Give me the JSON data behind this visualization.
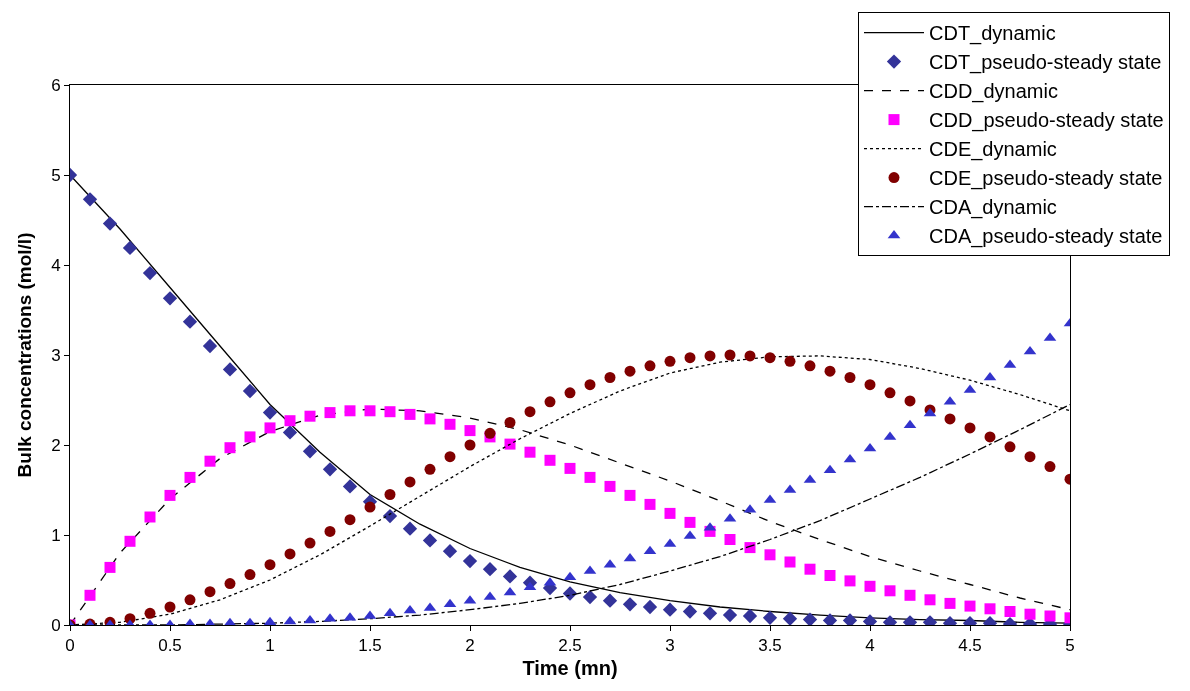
{
  "chart_data": {
    "type": "line",
    "xlabel": "Time (mn)",
    "ylabel": "Bulk concentrations (mol/l)",
    "xlim": [
      0,
      5
    ],
    "xticks": [
      0,
      0.5,
      1,
      1.5,
      2,
      2.5,
      3,
      3.5,
      4,
      4.5,
      5
    ],
    "ylim": [
      0,
      6
    ],
    "yticks": [
      0,
      1,
      2,
      3,
      4,
      5,
      6
    ],
    "grid": false,
    "legend": "top right",
    "series": [
      {
        "name": "CDT_dynamic",
        "type": "line",
        "line_style": "solid",
        "marker": "none",
        "color": "#000000",
        "x": [
          0,
          0.25,
          0.5,
          0.75,
          1,
          1.25,
          1.5,
          1.75,
          2,
          2.25,
          2.5,
          2.75,
          3,
          3.25,
          3.5,
          3.75,
          4,
          4.25,
          4.5,
          4.75,
          5
        ],
        "values": [
          5,
          4.4,
          3.75,
          3.1,
          2.45,
          1.92,
          1.45,
          1.12,
          0.85,
          0.64,
          0.48,
          0.36,
          0.27,
          0.2,
          0.15,
          0.11,
          0.08,
          0.06,
          0.05,
          0.03,
          0.02
        ]
      },
      {
        "name": "CDT_pseudo-steady state",
        "type": "scatter",
        "marker": "diamond",
        "color": "#333399",
        "x": [
          0,
          0.1,
          0.2,
          0.3,
          0.4,
          0.5,
          0.6,
          0.7,
          0.8,
          0.9,
          1,
          1.1,
          1.2,
          1.3,
          1.4,
          1.5,
          1.6,
          1.7,
          1.8,
          1.9,
          2,
          2.1,
          2.2,
          2.3,
          2.4,
          2.5,
          2.6,
          2.7,
          2.8,
          2.9,
          3,
          3.1,
          3.2,
          3.3,
          3.4,
          3.5,
          3.6,
          3.7,
          3.8,
          3.9,
          4,
          4.1,
          4.2,
          4.3,
          4.4,
          4.5,
          4.6,
          4.7,
          4.8,
          4.9,
          5
        ],
        "values": [
          5,
          4.73,
          4.46,
          4.19,
          3.91,
          3.63,
          3.37,
          3.1,
          2.84,
          2.6,
          2.36,
          2.14,
          1.93,
          1.73,
          1.54,
          1.37,
          1.21,
          1.07,
          0.94,
          0.82,
          0.71,
          0.62,
          0.54,
          0.47,
          0.41,
          0.35,
          0.31,
          0.27,
          0.23,
          0.2,
          0.17,
          0.15,
          0.13,
          0.11,
          0.1,
          0.08,
          0.07,
          0.06,
          0.05,
          0.05,
          0.04,
          0.03,
          0.03,
          0.03,
          0.02,
          0.02,
          0.02,
          0.01,
          0.01,
          0.01,
          0.01
        ]
      },
      {
        "name": "CDD_dynamic",
        "type": "line",
        "line_style": "dashed",
        "marker": "none",
        "color": "#000000",
        "x": [
          0,
          0.25,
          0.5,
          0.75,
          1,
          1.25,
          1.5,
          1.75,
          2,
          2.25,
          2.5,
          2.75,
          3,
          3.25,
          3.5,
          3.75,
          4,
          4.25,
          4.5,
          4.75,
          5
        ],
        "values": [
          0,
          0.8,
          1.4,
          1.85,
          2.15,
          2.33,
          2.4,
          2.38,
          2.3,
          2.17,
          2,
          1.8,
          1.6,
          1.38,
          1.15,
          0.95,
          0.76,
          0.6,
          0.45,
          0.3,
          0.17
        ]
      },
      {
        "name": "CDD_pseudo-steady state",
        "type": "scatter",
        "marker": "square",
        "color": "#ff00ff",
        "x": [
          0,
          0.1,
          0.2,
          0.3,
          0.4,
          0.5,
          0.6,
          0.7,
          0.8,
          0.9,
          1,
          1.1,
          1.2,
          1.3,
          1.4,
          1.5,
          1.6,
          1.7,
          1.8,
          1.9,
          2,
          2.1,
          2.2,
          2.3,
          2.4,
          2.5,
          2.6,
          2.7,
          2.8,
          2.9,
          3,
          3.1,
          3.2,
          3.3,
          3.4,
          3.5,
          3.6,
          3.7,
          3.8,
          3.9,
          4,
          4.1,
          4.2,
          4.3,
          4.4,
          4.5,
          4.6,
          4.7,
          4.8,
          4.9,
          5
        ],
        "values": [
          0,
          0.33,
          0.64,
          0.93,
          1.2,
          1.44,
          1.64,
          1.82,
          1.97,
          2.09,
          2.19,
          2.27,
          2.32,
          2.36,
          2.38,
          2.38,
          2.37,
          2.34,
          2.29,
          2.23,
          2.16,
          2.09,
          2.01,
          1.92,
          1.83,
          1.74,
          1.64,
          1.54,
          1.44,
          1.34,
          1.24,
          1.14,
          1.04,
          0.95,
          0.86,
          0.78,
          0.7,
          0.62,
          0.55,
          0.49,
          0.43,
          0.38,
          0.33,
          0.28,
          0.24,
          0.21,
          0.18,
          0.15,
          0.12,
          0.1,
          0.08
        ]
      },
      {
        "name": "CDE_dynamic",
        "type": "line",
        "line_style": "dotted",
        "marker": "none",
        "color": "#000000",
        "x": [
          0,
          0.25,
          0.5,
          0.75,
          1,
          1.25,
          1.5,
          1.75,
          2,
          2.25,
          2.5,
          2.75,
          3,
          3.25,
          3.5,
          3.75,
          4,
          4.25,
          4.5,
          4.75,
          5
        ],
        "values": [
          0,
          0.03,
          0.12,
          0.28,
          0.5,
          0.78,
          1.1,
          1.43,
          1.76,
          2.07,
          2.35,
          2.6,
          2.8,
          2.92,
          2.98,
          2.99,
          2.95,
          2.85,
          2.72,
          2.56,
          2.38
        ]
      },
      {
        "name": "CDE_pseudo-steady state",
        "type": "scatter",
        "marker": "circle",
        "color": "#800000",
        "x": [
          0,
          0.1,
          0.2,
          0.3,
          0.4,
          0.5,
          0.6,
          0.7,
          0.8,
          0.9,
          1,
          1.1,
          1.2,
          1.3,
          1.4,
          1.5,
          1.6,
          1.7,
          1.8,
          1.9,
          2,
          2.1,
          2.2,
          2.3,
          2.4,
          2.5,
          2.6,
          2.7,
          2.8,
          2.9,
          3,
          3.1,
          3.2,
          3.3,
          3.4,
          3.5,
          3.6,
          3.7,
          3.8,
          3.9,
          4,
          4.1,
          4.2,
          4.3,
          4.4,
          4.5,
          4.6,
          4.7,
          4.8,
          4.9,
          5
        ],
        "values": [
          0,
          0.01,
          0.03,
          0.07,
          0.13,
          0.2,
          0.28,
          0.37,
          0.46,
          0.56,
          0.67,
          0.79,
          0.91,
          1.04,
          1.17,
          1.31,
          1.45,
          1.59,
          1.73,
          1.87,
          2,
          2.13,
          2.25,
          2.37,
          2.48,
          2.58,
          2.67,
          2.75,
          2.82,
          2.88,
          2.93,
          2.97,
          2.99,
          3,
          2.99,
          2.97,
          2.93,
          2.88,
          2.82,
          2.75,
          2.67,
          2.58,
          2.49,
          2.39,
          2.29,
          2.19,
          2.09,
          1.98,
          1.87,
          1.76,
          1.62
        ]
      },
      {
        "name": "CDA_dynamic",
        "type": "line",
        "line_style": "dashdot",
        "marker": "none",
        "color": "#000000",
        "x": [
          0,
          0.25,
          0.5,
          0.75,
          1,
          1.25,
          1.5,
          1.75,
          2,
          2.25,
          2.5,
          2.75,
          3,
          3.25,
          3.5,
          3.75,
          4,
          4.25,
          4.5,
          4.75,
          5
        ],
        "values": [
          0,
          0,
          0,
          0.01,
          0.02,
          0.04,
          0.07,
          0.11,
          0.17,
          0.24,
          0.33,
          0.45,
          0.6,
          0.76,
          0.95,
          1.16,
          1.4,
          1.64,
          1.9,
          2.17,
          2.45
        ]
      },
      {
        "name": "CDA_pseudo-steady state",
        "type": "scatter",
        "marker": "triangle",
        "color": "#3333cc",
        "x": [
          0,
          0.1,
          0.2,
          0.3,
          0.4,
          0.5,
          0.6,
          0.7,
          0.8,
          0.9,
          1,
          1.1,
          1.2,
          1.3,
          1.4,
          1.5,
          1.6,
          1.7,
          1.8,
          1.9,
          2,
          2.1,
          2.2,
          2.3,
          2.4,
          2.5,
          2.6,
          2.7,
          2.8,
          2.9,
          3,
          3.1,
          3.2,
          3.3,
          3.4,
          3.5,
          3.6,
          3.7,
          3.8,
          3.9,
          4,
          4.1,
          4.2,
          4.3,
          4.4,
          4.5,
          4.6,
          4.7,
          4.8,
          4.9,
          5
        ],
        "values": [
          0,
          0,
          0,
          0,
          0,
          0,
          0.01,
          0.01,
          0.02,
          0.02,
          0.03,
          0.04,
          0.05,
          0.07,
          0.08,
          0.1,
          0.13,
          0.16,
          0.19,
          0.23,
          0.27,
          0.31,
          0.36,
          0.42,
          0.47,
          0.53,
          0.6,
          0.67,
          0.74,
          0.82,
          0.9,
          0.99,
          1.08,
          1.18,
          1.28,
          1.39,
          1.5,
          1.61,
          1.72,
          1.84,
          1.96,
          2.09,
          2.22,
          2.35,
          2.48,
          2.61,
          2.75,
          2.89,
          3.04,
          3.19,
          3.35
        ]
      }
    ]
  }
}
